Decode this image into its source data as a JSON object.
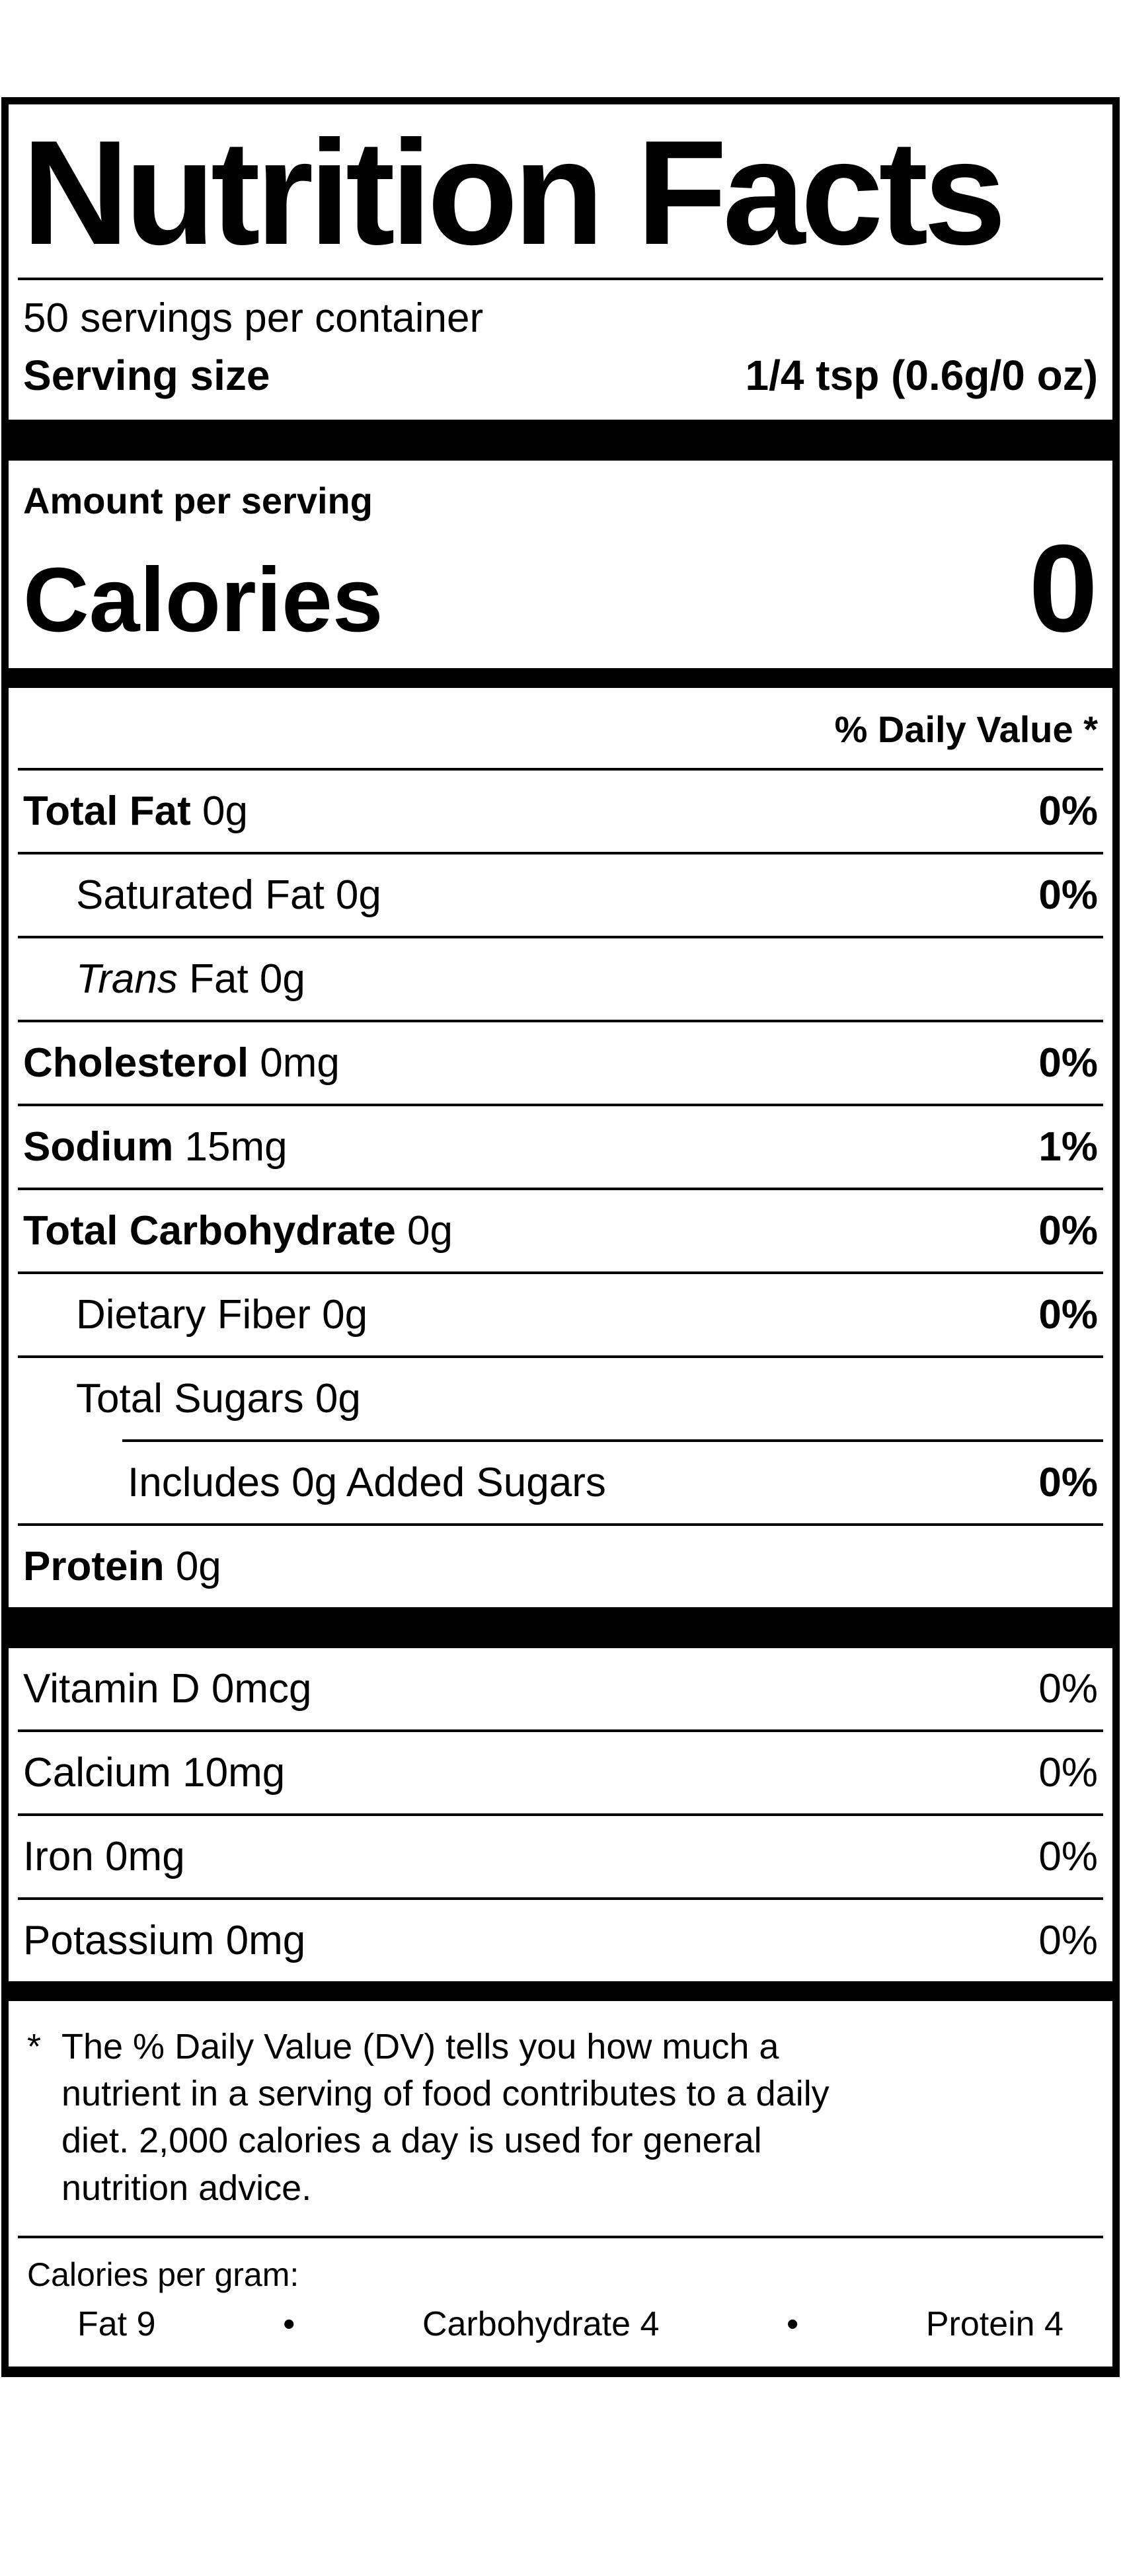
{
  "label": {
    "title": "Nutrition Facts",
    "servings_per_container": "50 servings per container",
    "serving_size_label": "Serving size",
    "serving_size_value": "1/4 tsp (0.6g/0 oz)",
    "amount_per_serving": "Amount per serving",
    "calories_label": "Calories",
    "calories_value": "0",
    "daily_value_header": "% Daily Value *",
    "nutrients": [
      {
        "bold": "Total Fat",
        "rest": " 0g",
        "value": "0%"
      },
      {
        "rest": "Saturated Fat 0g",
        "value": "0%"
      },
      {
        "italic": "Trans",
        "rest": " Fat 0g",
        "value": ""
      },
      {
        "bold": "Cholesterol",
        "rest": " 0mg",
        "value": "0%"
      },
      {
        "bold": "Sodium",
        "rest": " 15mg",
        "value": "1%"
      },
      {
        "bold": "Total Carbohydrate",
        "rest": " 0g",
        "value": "0%"
      },
      {
        "rest": "Dietary Fiber 0g",
        "value": "0%"
      },
      {
        "rest": "Total Sugars 0g",
        "value": ""
      },
      {
        "rest": "Includes 0g Added Sugars",
        "value": "0%"
      },
      {
        "bold": "Protein",
        "rest": " 0g",
        "value": ""
      }
    ],
    "vitamins": [
      {
        "name": "Vitamin D 0mcg",
        "value": "0%"
      },
      {
        "name": "Calcium 10mg",
        "value": "0%"
      },
      {
        "name": "Iron 0mg",
        "value": "0%"
      },
      {
        "name": "Potassium 0mg",
        "value": "0%"
      }
    ],
    "footnote_marker": "*",
    "footnote_text": "The % Daily Value (DV) tells you how much a nutrient in a serving of food contributes to a daily diet. 2,000 calories a day is used for general nutrition advice.",
    "calories_per_gram": {
      "title": "Calories per gram:",
      "fat": "Fat 9",
      "carbohydrate": "Carbohydrate 4",
      "protein": "Protein 4",
      "bullet": "•"
    }
  }
}
